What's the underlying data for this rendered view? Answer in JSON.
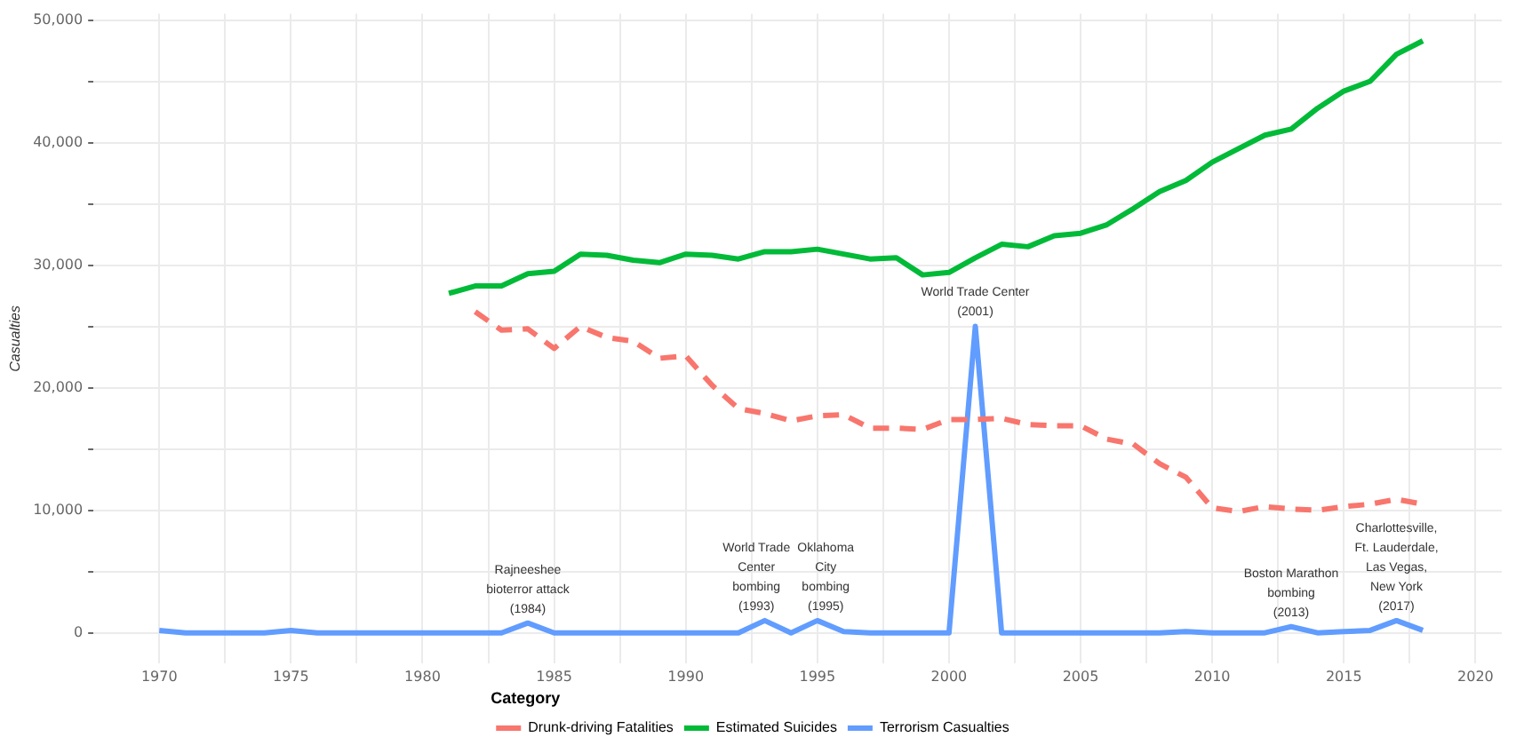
{
  "chart_data": {
    "type": "line",
    "ylabel": "Casualties",
    "legend_title": "Category",
    "legend": "bottom",
    "grid": true,
    "marker": "none",
    "x": [
      1970,
      1971,
      1972,
      1973,
      1974,
      1975,
      1976,
      1977,
      1978,
      1979,
      1980,
      1981,
      1982,
      1983,
      1984,
      1985,
      1986,
      1987,
      1988,
      1989,
      1990,
      1991,
      1992,
      1993,
      1994,
      1995,
      1996,
      1997,
      1998,
      1999,
      2000,
      2001,
      2002,
      2003,
      2004,
      2005,
      2006,
      2007,
      2008,
      2009,
      2010,
      2011,
      2012,
      2013,
      2014,
      2015,
      2016,
      2017,
      2018
    ],
    "xlim": [
      1967.5,
      2021
    ],
    "xticks": [
      1970,
      {
        "value": 1972.5,
        "label": null
      },
      1975,
      {
        "value": 1977.5,
        "label": null
      },
      1980,
      {
        "value": 1982.5,
        "label": null
      },
      1985,
      {
        "value": 1987.5,
        "label": null
      },
      1990,
      {
        "value": 1992.5,
        "label": null
      },
      1995,
      {
        "value": 1997.5,
        "label": null
      },
      2000,
      {
        "value": 2002.5,
        "label": null
      },
      2005,
      {
        "value": 2007.5,
        "label": null
      },
      2010,
      {
        "value": 2012.5,
        "label": null
      },
      2015,
      {
        "value": 2017.5,
        "label": null
      },
      2020
    ],
    "ylim": [
      -2500,
      50500
    ],
    "yticks": [
      {
        "value": 0,
        "label": "0"
      },
      {
        "value": 5000,
        "label": null
      },
      {
        "value": 10000,
        "label": "10,000"
      },
      {
        "value": 15000,
        "label": null
      },
      {
        "value": 20000,
        "label": "20,000"
      },
      {
        "value": 25000,
        "label": null
      },
      {
        "value": 30000,
        "label": "30,000"
      },
      {
        "value": 35000,
        "label": null
      },
      {
        "value": 40000,
        "label": "40,000"
      },
      {
        "value": 45000,
        "label": null
      },
      {
        "value": 50000,
        "label": "50,000"
      }
    ],
    "series": [
      {
        "name": "Drunk-driving Fatalities",
        "color": "#f8766d",
        "line_style": "dashed",
        "values": [
          null,
          null,
          null,
          null,
          null,
          null,
          null,
          null,
          null,
          null,
          null,
          null,
          26200,
          24700,
          24800,
          23200,
          25000,
          24100,
          23800,
          22400,
          22600,
          20200,
          18300,
          17900,
          17300,
          17700,
          17800,
          16700,
          16700,
          16600,
          17400,
          17400,
          17500,
          17000,
          16900,
          16900,
          15800,
          15400,
          13800,
          12700,
          10200,
          9900,
          10300,
          10100,
          10000,
          10300,
          10500,
          10900,
          10500
        ]
      },
      {
        "name": "Estimated Suicides",
        "color": "#00ba38",
        "line_style": "solid",
        "values": [
          null,
          null,
          null,
          null,
          null,
          null,
          null,
          null,
          null,
          null,
          null,
          27700,
          28300,
          28300,
          29300,
          29500,
          30900,
          30800,
          30400,
          30200,
          30900,
          30800,
          30500,
          31100,
          31100,
          31300,
          30900,
          30500,
          30600,
          29200,
          29400,
          30600,
          31700,
          31500,
          32400,
          32600,
          33300,
          34600,
          36000,
          36900,
          38400,
          39500,
          40600,
          41100,
          42800,
          44200,
          45000,
          47200,
          48300
        ]
      },
      {
        "name": "Terrorism Casualties",
        "color": "#619cff",
        "line_style": "solid",
        "values": [
          200,
          0,
          0,
          0,
          0,
          200,
          0,
          0,
          0,
          0,
          0,
          0,
          0,
          0,
          800,
          0,
          0,
          0,
          0,
          0,
          0,
          0,
          0,
          1000,
          0,
          1000,
          100,
          0,
          0,
          0,
          0,
          25000,
          0,
          0,
          0,
          0,
          0,
          0,
          0,
          100,
          0,
          0,
          0,
          500,
          0,
          100,
          200,
          1000,
          200
        ]
      }
    ],
    "annotations": [
      {
        "text": "Rajneeshee\nbioterror attack\n(1984)",
        "x": 1984,
        "y": 800
      },
      {
        "text": "World Trade\nCenter\nbombing\n(1993)",
        "x": 1993,
        "y": 1000
      },
      {
        "text": "Oklahoma\nCity\nbombing\n(1995)",
        "x": 1995,
        "y": 950
      },
      {
        "text": "World Trade Center\n(2001)",
        "x": 2001,
        "y": 25000
      },
      {
        "text": "Boston Marathon\nbombing\n(2013)",
        "x": 2013,
        "y": 500
      },
      {
        "text": "Charlottesville,\nFt. Lauderdale,\nLas Vegas,\nNew York\n(2017)",
        "x": 2017,
        "y": 1000
      }
    ]
  }
}
